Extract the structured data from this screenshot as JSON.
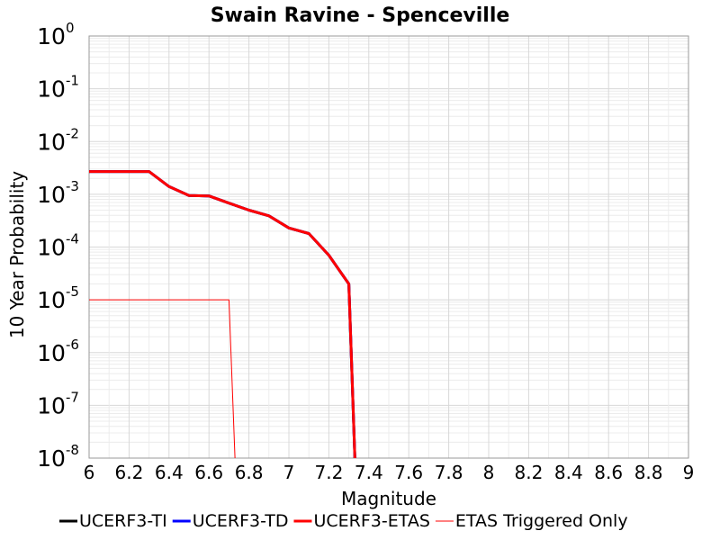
{
  "chart_data": {
    "type": "line",
    "title": "Swain Ravine - Spenceville",
    "xlabel": "Magnitude",
    "ylabel": "10 Year Probability",
    "xlim": [
      6,
      9
    ],
    "ylim": [
      1e-08,
      1
    ],
    "yscale": "log",
    "grid": true,
    "legend_position": "bottom",
    "x_ticks": [
      "6",
      "6.2",
      "6.4",
      "6.6",
      "6.8",
      "7",
      "7.2",
      "7.4",
      "7.6",
      "7.8",
      "8",
      "8.2",
      "8.4",
      "8.6",
      "8.8",
      "9"
    ],
    "y_ticks": [
      {
        "base": "10",
        "exp": "0",
        "value": 1
      },
      {
        "base": "10",
        "exp": "-1",
        "value": 0.1
      },
      {
        "base": "10",
        "exp": "-2",
        "value": 0.01
      },
      {
        "base": "10",
        "exp": "-3",
        "value": 0.001
      },
      {
        "base": "10",
        "exp": "-4",
        "value": 0.0001
      },
      {
        "base": "10",
        "exp": "-5",
        "value": 1e-05
      },
      {
        "base": "10",
        "exp": "-6",
        "value": 1e-06
      },
      {
        "base": "10",
        "exp": "-7",
        "value": 1e-07
      },
      {
        "base": "10",
        "exp": "-8",
        "value": 1e-08
      }
    ],
    "series": [
      {
        "name": "UCERF3-TI",
        "color": "#000000",
        "width": 3,
        "x": [
          6.0,
          6.3,
          6.4,
          6.5,
          6.6,
          6.7,
          6.8,
          6.9,
          7.0,
          7.1,
          7.2,
          7.3,
          7.33
        ],
        "y": [
          0.0027,
          0.0027,
          0.0014,
          0.00095,
          0.00093,
          0.00068,
          0.0005,
          0.00039,
          0.00023,
          0.00018,
          7e-05,
          2e-05,
          1e-08
        ]
      },
      {
        "name": "UCERF3-TD",
        "color": "#0000ff",
        "width": 3,
        "x": [
          6.0,
          6.3,
          6.4,
          6.5,
          6.6,
          6.7,
          6.8,
          6.9,
          7.0,
          7.1,
          7.2,
          7.3,
          7.33
        ],
        "y": [
          0.0027,
          0.0027,
          0.0014,
          0.00095,
          0.00093,
          0.00068,
          0.0005,
          0.00039,
          0.00023,
          0.00018,
          7e-05,
          2e-05,
          1e-08
        ]
      },
      {
        "name": "UCERF3-ETAS",
        "color": "#ff0000",
        "width": 3,
        "x": [
          6.0,
          6.3,
          6.4,
          6.5,
          6.6,
          6.7,
          6.8,
          6.9,
          7.0,
          7.1,
          7.2,
          7.3,
          7.33
        ],
        "y": [
          0.0027,
          0.0027,
          0.0014,
          0.00095,
          0.00093,
          0.00068,
          0.0005,
          0.00039,
          0.00023,
          0.00018,
          7e-05,
          2e-05,
          1e-08
        ]
      },
      {
        "name": "ETAS Triggered Only",
        "color": "#ff0000",
        "width": 1,
        "x": [
          6.0,
          6.7,
          6.73
        ],
        "y": [
          1e-05,
          1e-05,
          1e-08
        ]
      }
    ]
  }
}
